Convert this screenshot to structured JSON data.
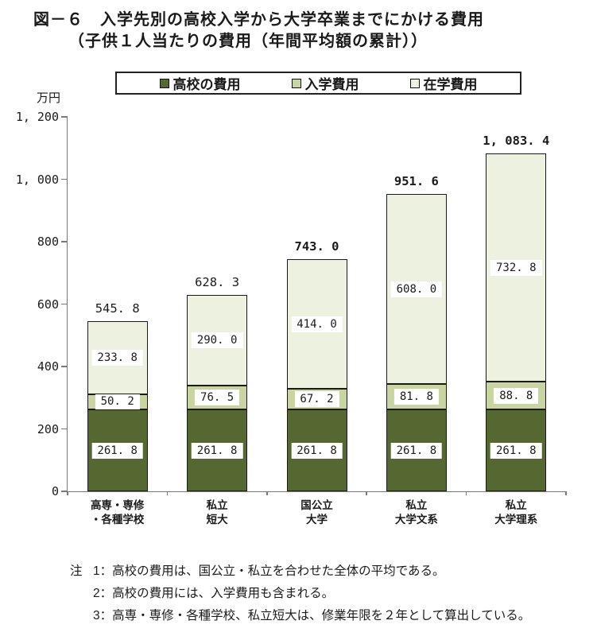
{
  "title": {
    "line1": "図－６　入学先別の高校入学から大学卒業までにかける費用",
    "line2": "（子供１人当たりの費用（年間平均額の累計））"
  },
  "y_axis": {
    "unit": "万円",
    "ticks": [
      "0",
      "200",
      "400",
      "600",
      "800",
      "1, 000",
      "1, 200"
    ]
  },
  "legend": {
    "items": [
      {
        "key": "high-school-cost",
        "label": "高校の費用",
        "color": "#556832"
      },
      {
        "key": "entrance-cost",
        "label": "入学費用",
        "color": "#c9d5a0"
      },
      {
        "key": "in-school-cost",
        "label": "在学費用",
        "color": "#edf1e0"
      }
    ]
  },
  "chart_data": {
    "type": "bar",
    "stacked": true,
    "title": "図－６　入学先別の高校入学から大学卒業までにかける費用（子供１人当たりの費用（年間平均額の累計））",
    "xlabel": "",
    "ylabel": "万円",
    "ylim": [
      0,
      1200
    ],
    "ytick_step": 200,
    "grid": false,
    "legend_position": "top",
    "categories": [
      [
        "高専・専修",
        "・各種学校"
      ],
      [
        "私立",
        "短大"
      ],
      [
        "国公立",
        "大学"
      ],
      [
        "私立",
        "大学文系"
      ],
      [
        "私立",
        "大学理系"
      ]
    ],
    "series": [
      {
        "key": "high-school-cost",
        "name": "高校の費用",
        "color": "#556832",
        "values": [
          261.8,
          261.8,
          261.8,
          261.8,
          261.8
        ],
        "labels": [
          "261. 8",
          "261. 8",
          "261. 8",
          "261. 8",
          "261. 8"
        ],
        "label_text_color": "#1a1a1a"
      },
      {
        "key": "entrance-cost",
        "name": "入学費用",
        "color": "#c9d5a0",
        "values": [
          50.2,
          76.5,
          67.2,
          81.8,
          88.8
        ],
        "labels": [
          "50. 2",
          "76. 5",
          "67. 2",
          "81. 8",
          "88. 8"
        ],
        "label_text_color": "#1a1a1a"
      },
      {
        "key": "in-school-cost",
        "name": "在学費用",
        "color": "#edf1e0",
        "values": [
          233.8,
          290.0,
          414.0,
          608.0,
          732.8
        ],
        "labels": [
          "233. 8",
          "290. 0",
          "414. 0",
          "608. 0",
          "732. 8"
        ],
        "label_text_color": "#1a1a1a"
      }
    ],
    "totals": [
      {
        "value": 545.8,
        "display": "545. 8",
        "bold": false
      },
      {
        "value": 628.3,
        "display": "628. 3",
        "bold": false
      },
      {
        "value": 743.0,
        "display": "743. 0",
        "bold": true
      },
      {
        "value": 951.6,
        "display": "951. 6",
        "bold": true
      },
      {
        "value": 1083.4,
        "display": "1, 083. 4",
        "bold": true
      }
    ]
  },
  "notes": {
    "prefix": "注",
    "items": [
      "1：高校の費用は、国公立・私立を合わせた全体の平均である。",
      "2：高校の費用には、入学費用も含まれる。",
      "3：高専・専修・各種学校、私立短大は、修業年限を２年として算出している。"
    ]
  }
}
